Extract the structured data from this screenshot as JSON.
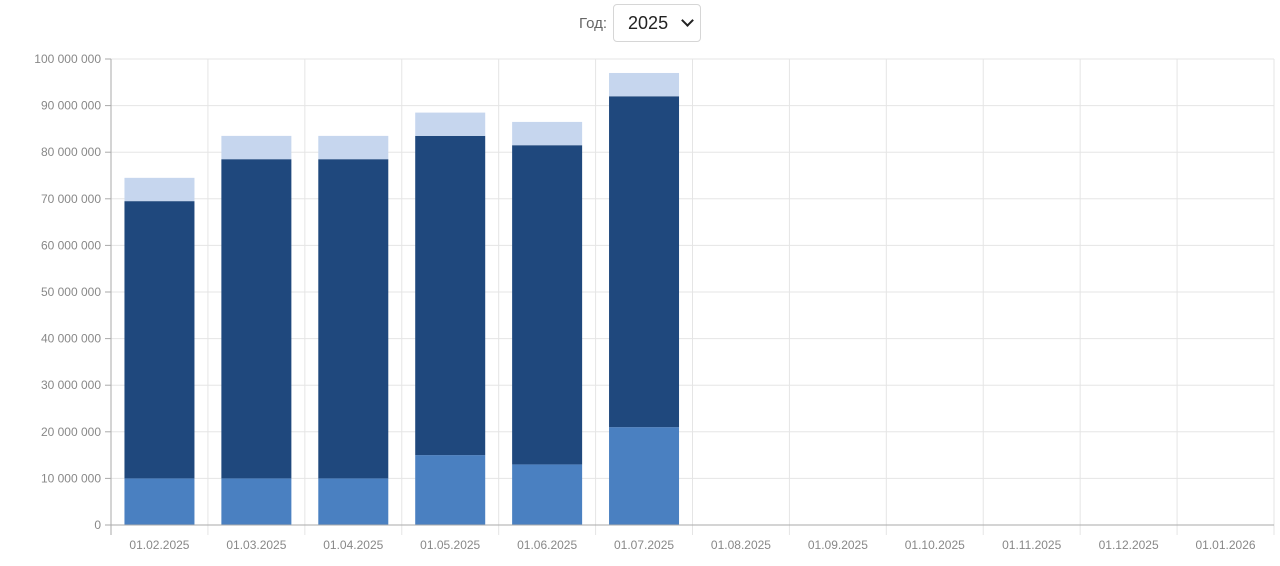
{
  "year_filter": {
    "label": "Год:",
    "selected": "2025"
  },
  "chart_data": {
    "type": "bar",
    "stacked": true,
    "categories": [
      "01.02.2025",
      "01.03.2025",
      "01.04.2025",
      "01.05.2025",
      "01.06.2025",
      "01.07.2025",
      "01.08.2025",
      "01.09.2025",
      "01.10.2025",
      "01.11.2025",
      "01.12.2025",
      "01.01.2026"
    ],
    "series": [
      {
        "color": "#4a80c1",
        "values": [
          10000000,
          10000000,
          10000000,
          15000000,
          13000000,
          21000000,
          0,
          0,
          0,
          0,
          0,
          0
        ]
      },
      {
        "color": "#1f487d",
        "values": [
          59500000,
          68500000,
          68500000,
          68500000,
          68500000,
          71000000,
          0,
          0,
          0,
          0,
          0,
          0
        ]
      },
      {
        "color": "#c6d6ee",
        "values": [
          5000000,
          5000000,
          5000000,
          5000000,
          5000000,
          5000000,
          0,
          0,
          0,
          0,
          0,
          0
        ]
      }
    ],
    "ylim": [
      0,
      100000000
    ],
    "yticks": [
      0,
      10000000,
      20000000,
      30000000,
      40000000,
      50000000,
      60000000,
      70000000,
      80000000,
      90000000,
      100000000
    ],
    "ytick_labels": [
      "0",
      "10 000 000",
      "20 000 000",
      "30 000 000",
      "40 000 000",
      "50 000 000",
      "60 000 000",
      "70 000 000",
      "80 000 000",
      "90 000 000",
      "100 000 000"
    ],
    "grid": true,
    "colors": {
      "grid": "#e5e5e5",
      "axis": "#aaaaaa",
      "tick_text": "#888888"
    }
  }
}
